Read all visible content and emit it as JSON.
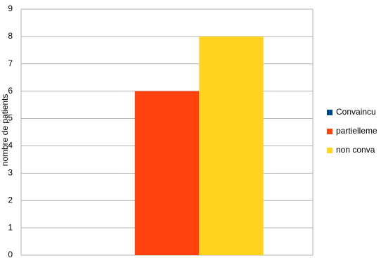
{
  "chart_data": {
    "type": "bar",
    "y_label": "nombre de patients",
    "categories": [
      null
    ],
    "series": [
      {
        "name": "Convaincu",
        "color": "#004586",
        "values": [
          0
        ]
      },
      {
        "name": "partielleme",
        "color": "#ff420e",
        "values": [
          6
        ]
      },
      {
        "name": "non conva",
        "color": "#ffd320",
        "values": [
          8
        ]
      }
    ],
    "ylim": [
      0,
      9
    ],
    "yticks": [
      0,
      1,
      2,
      3,
      4,
      5,
      6,
      7,
      8,
      9
    ],
    "grid": true,
    "legend": "right"
  }
}
